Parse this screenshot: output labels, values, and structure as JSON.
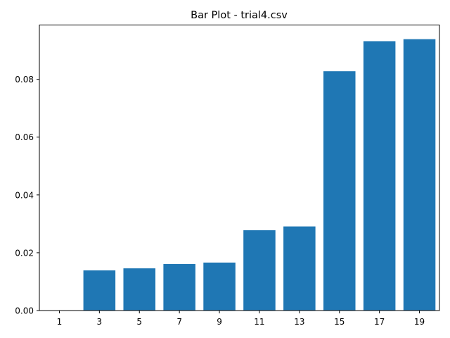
{
  "chart_data": {
    "type": "bar",
    "title": "Bar Plot - trial4.csv",
    "xlabel": "",
    "ylabel": "",
    "categories": [
      "1",
      "3",
      "5",
      "7",
      "9",
      "11",
      "13",
      "15",
      "17",
      "19"
    ],
    "values": [
      0.0,
      0.0139,
      0.0146,
      0.0161,
      0.0166,
      0.0278,
      0.0291,
      0.0828,
      0.0932,
      0.0939
    ],
    "ylim": [
      0,
      0.0988
    ],
    "yticks": [
      "0.00",
      "0.02",
      "0.04",
      "0.06",
      "0.08"
    ],
    "grid": false,
    "legend": "none",
    "colors": {
      "bar": "#1f77b4",
      "axes": "#000000",
      "background": "#ffffff"
    }
  }
}
